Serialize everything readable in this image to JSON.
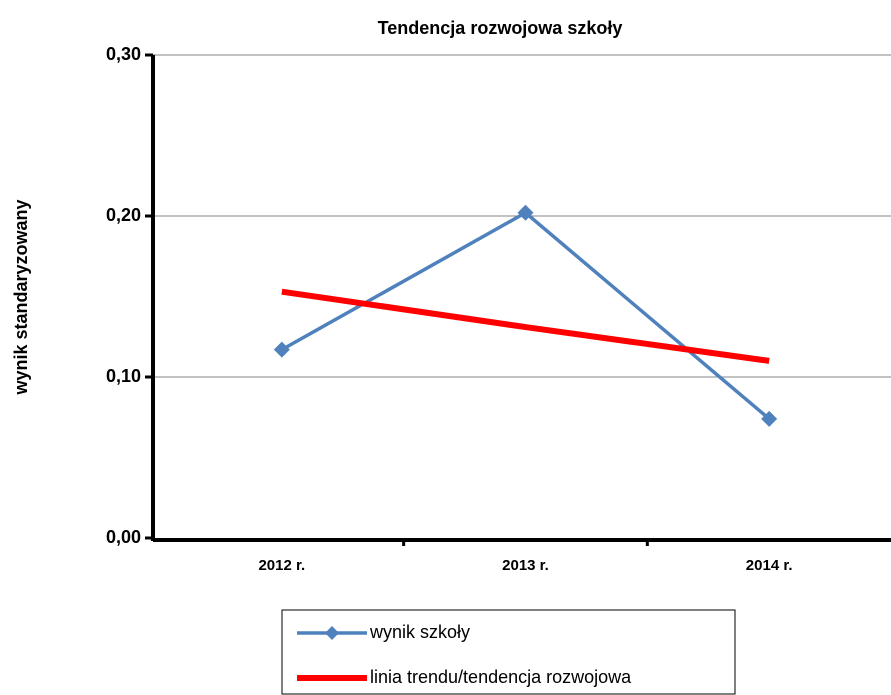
{
  "chart_data": {
    "type": "line",
    "title": "Tendencja rozwojowa szkoły",
    "y_label": "wynik standaryzowany",
    "categories": [
      "2012 r.",
      "2013 r.",
      "2014 r."
    ],
    "series": [
      {
        "name": "wynik szkoły",
        "color": "#4f81bd",
        "marker": "diamond",
        "values": [
          0.117,
          0.202,
          0.074
        ]
      },
      {
        "name": "linia trendu/tendencja rozwojowa",
        "color": "#ff0000",
        "values": [
          0.153,
          0.131,
          0.11
        ]
      }
    ],
    "ylim": [
      0,
      0.3
    ],
    "yticks": [
      {
        "value": 0,
        "label": "0,00"
      },
      {
        "value": 0.1,
        "label": "0,10"
      },
      {
        "value": 0.2,
        "label": "0,20"
      },
      {
        "value": 0.3,
        "label": "0,30"
      }
    ],
    "grid": true
  }
}
